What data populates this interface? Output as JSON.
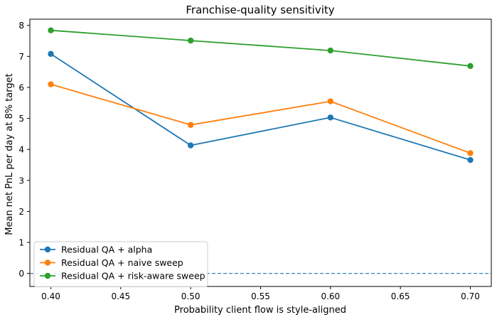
{
  "chart_data": {
    "type": "line",
    "title": "Franchise-quality sensitivity",
    "xlabel": "Probability client flow is style-aligned",
    "ylabel": "Mean net PnL per day at 8% target",
    "x": [
      0.4,
      0.5,
      0.6,
      0.7
    ],
    "xlim": [
      0.385,
      0.715
    ],
    "ylim": [
      -0.42,
      8.2
    ],
    "xticks": [
      "0.40",
      "0.45",
      "0.50",
      "0.55",
      "0.60",
      "0.65",
      "0.70"
    ],
    "yticks": [
      "0",
      "1",
      "2",
      "3",
      "4",
      "5",
      "6",
      "7",
      "8"
    ],
    "grid": false,
    "legend_position": "lower-left",
    "reference_line": {
      "y": 0,
      "style": "dashed",
      "color": "#1f77b4"
    },
    "series": [
      {
        "name": "Residual QA + alpha",
        "color": "#1f77b4",
        "values": [
          7.08,
          4.13,
          5.03,
          3.66
        ]
      },
      {
        "name": "Residual QA + naive sweep",
        "color": "#ff7f0e",
        "values": [
          6.1,
          4.79,
          5.55,
          3.88
        ]
      },
      {
        "name": "Residual QA + risk-aware sweep",
        "color": "#2ca02c",
        "values": [
          7.84,
          7.51,
          7.19,
          6.69
        ]
      }
    ]
  }
}
